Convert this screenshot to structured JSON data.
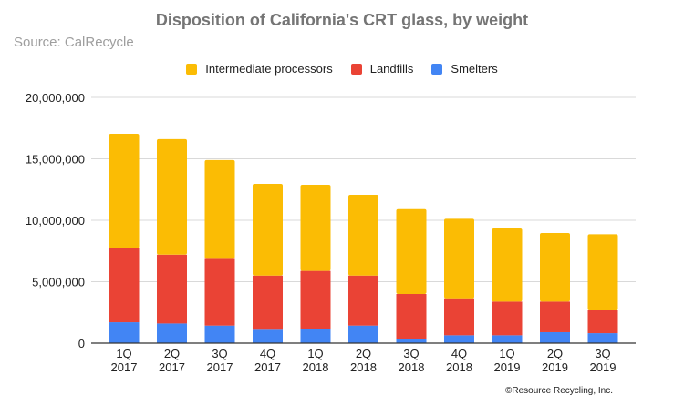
{
  "chart_data": {
    "type": "bar",
    "stacked": true,
    "title": "Disposition of California's CRT glass, by weight",
    "subtitle": "Source: CalRecycle",
    "credit": "©Resource Recycling, Inc.",
    "categories": [
      [
        "1Q",
        "2017"
      ],
      [
        "2Q",
        "2017"
      ],
      [
        "3Q",
        "2017"
      ],
      [
        "4Q",
        "2017"
      ],
      [
        "1Q",
        "2018"
      ],
      [
        "2Q",
        "2018"
      ],
      [
        "3Q",
        "2018"
      ],
      [
        "4Q",
        "2018"
      ],
      [
        "1Q",
        "2019"
      ],
      [
        "2Q",
        "2019"
      ],
      [
        "3Q",
        "2019"
      ]
    ],
    "series": [
      {
        "name": "Smelters",
        "color": "#4285f4",
        "values": [
          1700000,
          1600000,
          1430000,
          1090000,
          1160000,
          1430000,
          370000,
          640000,
          640000,
          890000,
          810000
        ]
      },
      {
        "name": "Landfills",
        "color": "#ea4335",
        "values": [
          6030000,
          5600000,
          5430000,
          4410000,
          4720000,
          4070000,
          3630000,
          3010000,
          2740000,
          2490000,
          1860000
        ]
      },
      {
        "name": "Intermediate processors",
        "color": "#fbbc04",
        "values": [
          9310000,
          9400000,
          8040000,
          7460000,
          7010000,
          6570000,
          6910000,
          6470000,
          5950000,
          5580000,
          6190000
        ]
      }
    ],
    "legend_order": [
      "Intermediate processors",
      "Landfills",
      "Smelters"
    ],
    "legend_position": "top",
    "ylim": [
      0,
      20000000
    ],
    "yticks": [
      0,
      5000000,
      10000000,
      15000000,
      20000000
    ],
    "ytick_labels": [
      "0",
      "5,000,000",
      "10,000,000",
      "15,000,000",
      "20,000,000"
    ],
    "grid": true
  }
}
